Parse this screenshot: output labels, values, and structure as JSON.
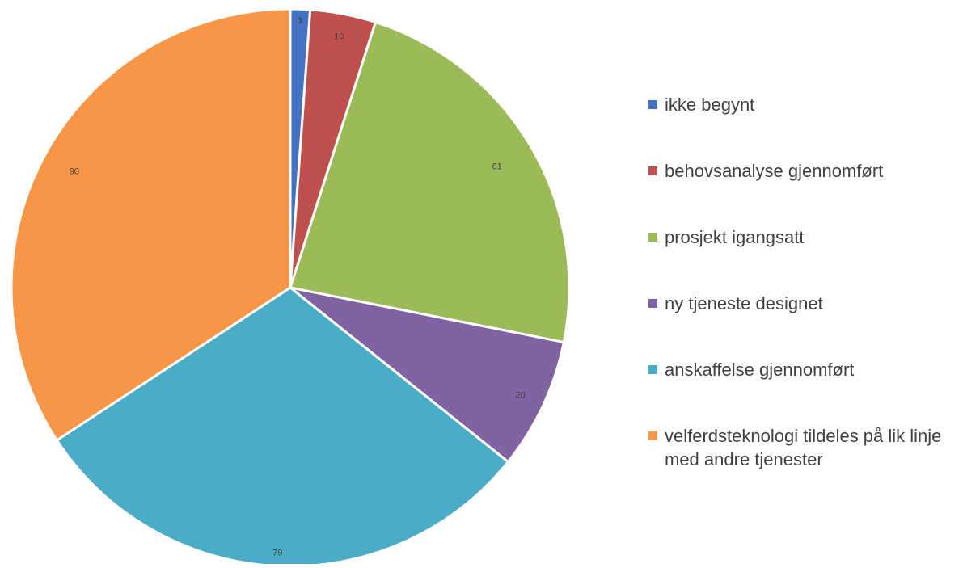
{
  "chart_data": {
    "type": "pie",
    "title": "",
    "categories": [
      "ikke begynt",
      "behovsanalyse gjennomført",
      "prosjekt igangsatt",
      "ny tjeneste designet",
      "anskaffelse gjennomført",
      "velferdsteknologi tildeles på lik linje med andre tjenester"
    ],
    "values": [
      3,
      10,
      61,
      20,
      79,
      90
    ],
    "colors": [
      "#4472c4",
      "#c0504d",
      "#9bbb59",
      "#8064a2",
      "#4bacc6",
      "#f79646"
    ],
    "legend_position": "right",
    "data_labels": true
  }
}
